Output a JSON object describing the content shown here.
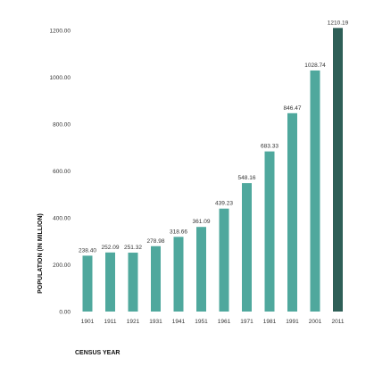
{
  "chart_data": {
    "type": "bar",
    "title": "",
    "xlabel": "CENSUS YEAR",
    "ylabel": "POPULATION (IN MILLION)",
    "categories": [
      "1901",
      "1911",
      "1921",
      "1931",
      "1941",
      "1951",
      "1961",
      "1971",
      "1981",
      "1991",
      "2001",
      "2011"
    ],
    "values": [
      238.4,
      252.09,
      251.32,
      278.98,
      318.66,
      361.09,
      439.23,
      548.16,
      683.33,
      846.47,
      1028.74,
      1210.19
    ],
    "value_labels": [
      "238.40",
      "252.09",
      "251.32",
      "278.98",
      "318.66",
      "361.09",
      "439.23",
      "548.16",
      "683.33",
      "846.47",
      "1028.74",
      "1210.19"
    ],
    "yticks": [
      "0.00",
      "200.00",
      "400.00",
      "600.00",
      "800.00",
      "1000.00",
      "1200.00"
    ],
    "ylim": [
      0,
      1200
    ],
    "grid": false,
    "legend": "none",
    "colors": {
      "bar": "#4fa89d",
      "highlight_bar": "#2e5f57"
    },
    "highlight_category": "2011"
  }
}
